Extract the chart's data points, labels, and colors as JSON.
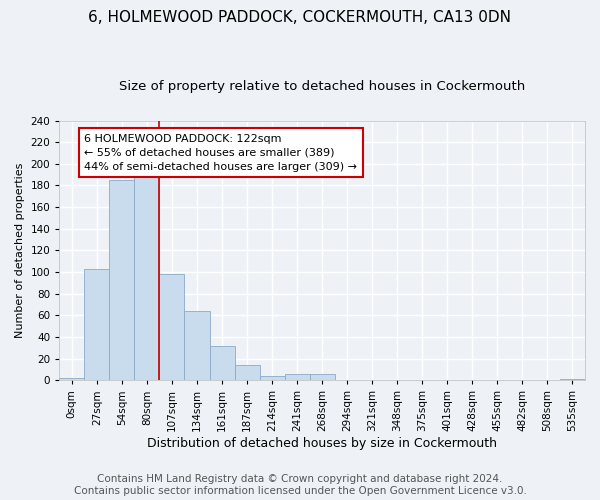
{
  "title": "6, HOLMEWOOD PADDOCK, COCKERMOUTH, CA13 0DN",
  "subtitle": "Size of property relative to detached houses in Cockermouth",
  "xlabel": "Distribution of detached houses by size in Cockermouth",
  "ylabel": "Number of detached properties",
  "bar_color": "#c8dcee",
  "bar_edge_color": "#8aaac8",
  "bin_labels": [
    "0sqm",
    "27sqm",
    "54sqm",
    "80sqm",
    "107sqm",
    "134sqm",
    "161sqm",
    "187sqm",
    "214sqm",
    "241sqm",
    "268sqm",
    "294sqm",
    "321sqm",
    "348sqm",
    "375sqm",
    "401sqm",
    "428sqm",
    "455sqm",
    "482sqm",
    "508sqm",
    "535sqm"
  ],
  "bar_heights": [
    2,
    103,
    185,
    190,
    98,
    64,
    32,
    14,
    4,
    6,
    6,
    0,
    0,
    0,
    0,
    0,
    0,
    0,
    0,
    0,
    1
  ],
  "vline_x_index": 3.5,
  "vline_color": "#cc0000",
  "annotation_text": "6 HOLMEWOOD PADDOCK: 122sqm\n← 55% of detached houses are smaller (389)\n44% of semi-detached houses are larger (309) →",
  "annotation_box_facecolor": "#ffffff",
  "annotation_box_edgecolor": "#cc0000",
  "ylim": [
    0,
    240
  ],
  "yticks": [
    0,
    20,
    40,
    60,
    80,
    100,
    120,
    140,
    160,
    180,
    200,
    220,
    240
  ],
  "footer1": "Contains HM Land Registry data © Crown copyright and database right 2024.",
  "footer2": "Contains public sector information licensed under the Open Government Licence v3.0.",
  "background_color": "#eef2f7",
  "grid_color": "#ffffff",
  "title_fontsize": 11,
  "subtitle_fontsize": 9.5,
  "xlabel_fontsize": 9,
  "ylabel_fontsize": 8,
  "tick_fontsize": 7.5,
  "annotation_fontsize": 8,
  "footer_fontsize": 7.5
}
